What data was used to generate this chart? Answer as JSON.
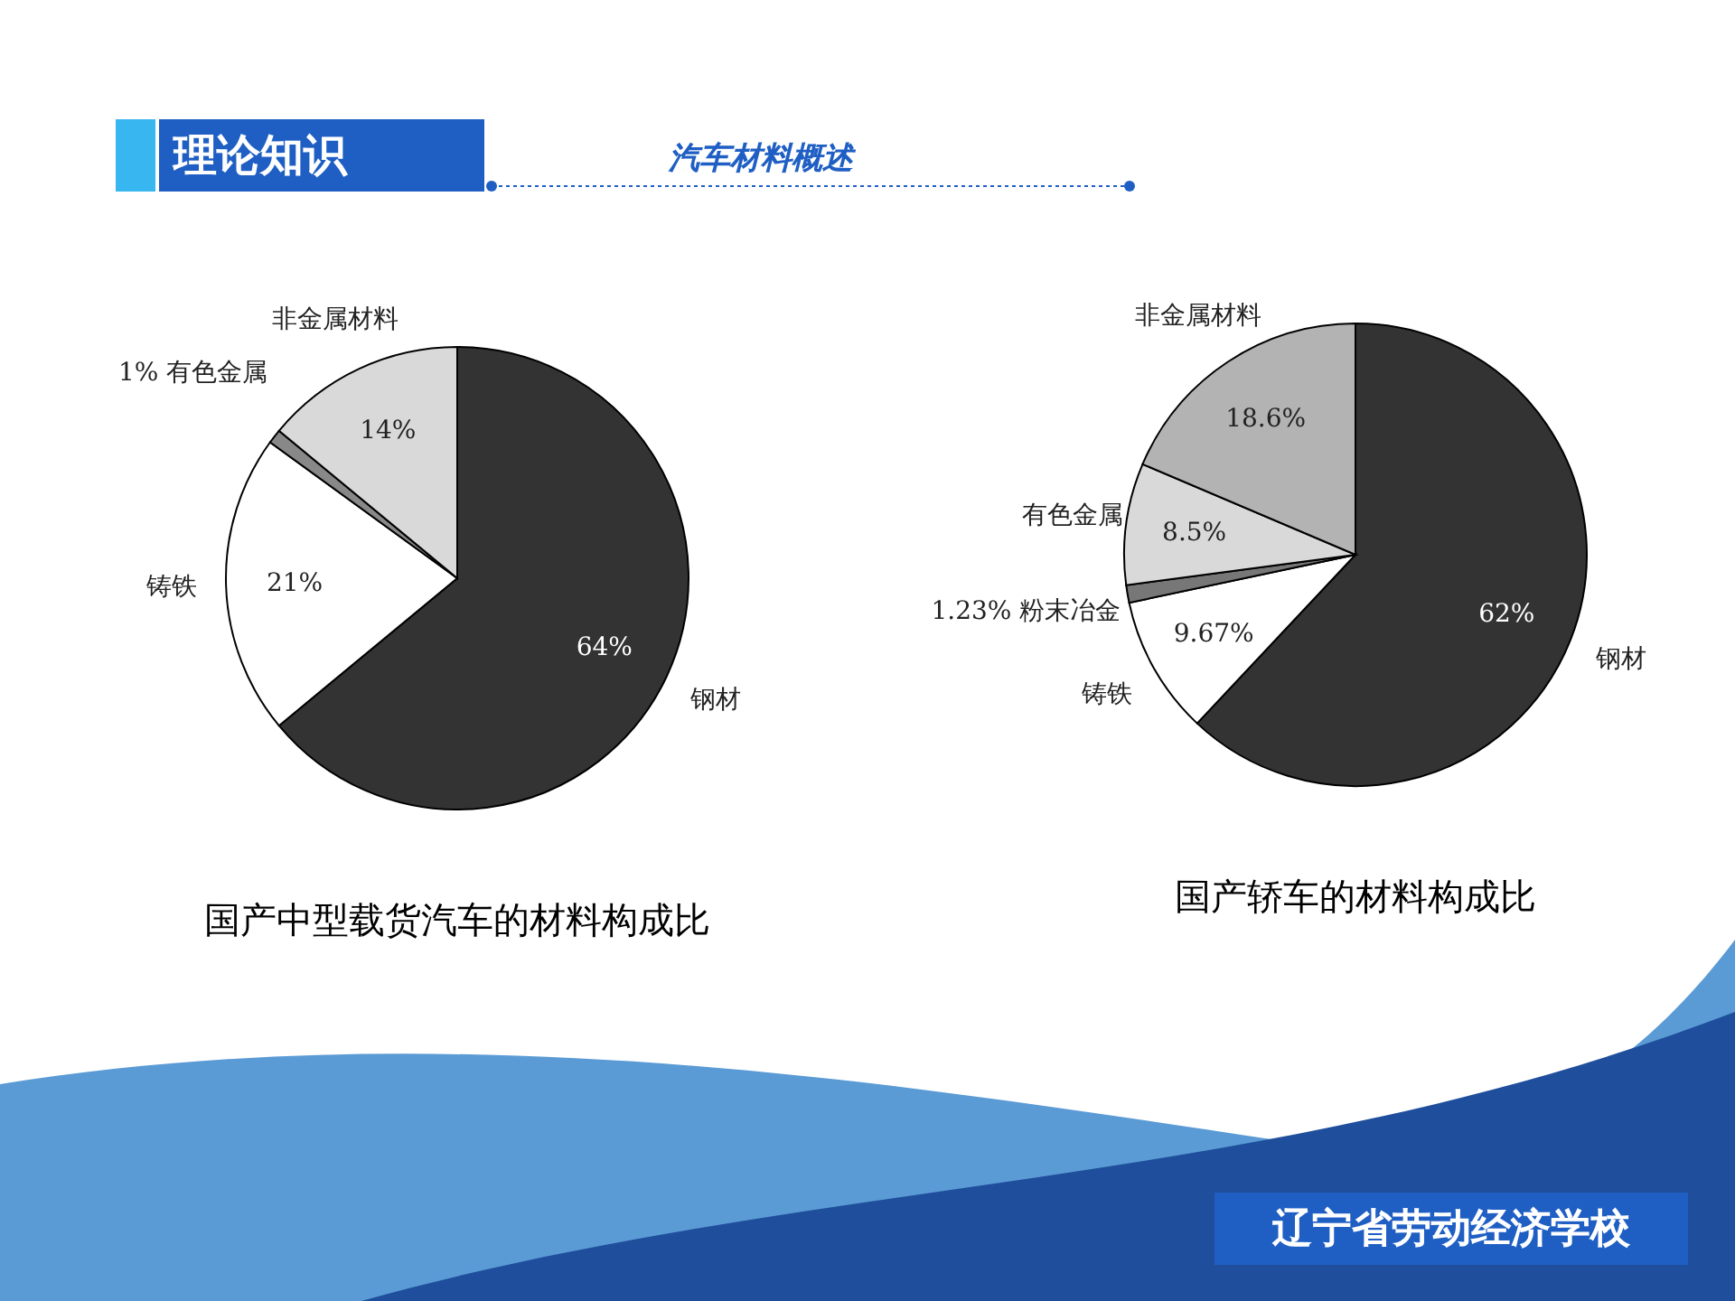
{
  "chart_data": [
    {
      "type": "other",
      "title": "理论知识",
      "subtitle": "汽车材料概述",
      "annotations": [
        "辽宁省劳动经济学校"
      ]
    },
    {
      "type": "pie",
      "title": "国产中型载货汽车的材料构成比",
      "categories": [
        "钢材",
        "铸铁",
        "有色金属",
        "非金属材料"
      ],
      "values": [
        64,
        21,
        1,
        14
      ],
      "value_labels": [
        "64%",
        "21%",
        "1%",
        "14%"
      ],
      "colors": [
        "#333333",
        "#ffffff",
        "#888888",
        "#d9d9d9"
      ]
    },
    {
      "type": "pie",
      "title": "国产轿车的材料构成比",
      "categories": [
        "钢材",
        "铸铁",
        "粉末冶金",
        "有色金属",
        "非金属材料"
      ],
      "values": [
        62,
        9.67,
        1.23,
        8.5,
        18.6
      ],
      "value_labels": [
        "62%",
        "9.67%",
        "1.23%",
        "8.5%",
        "18.6%"
      ],
      "colors": [
        "#333333",
        "#ffffff",
        "#777777",
        "#d9d9d9",
        "#b3b3b3"
      ]
    }
  ]
}
